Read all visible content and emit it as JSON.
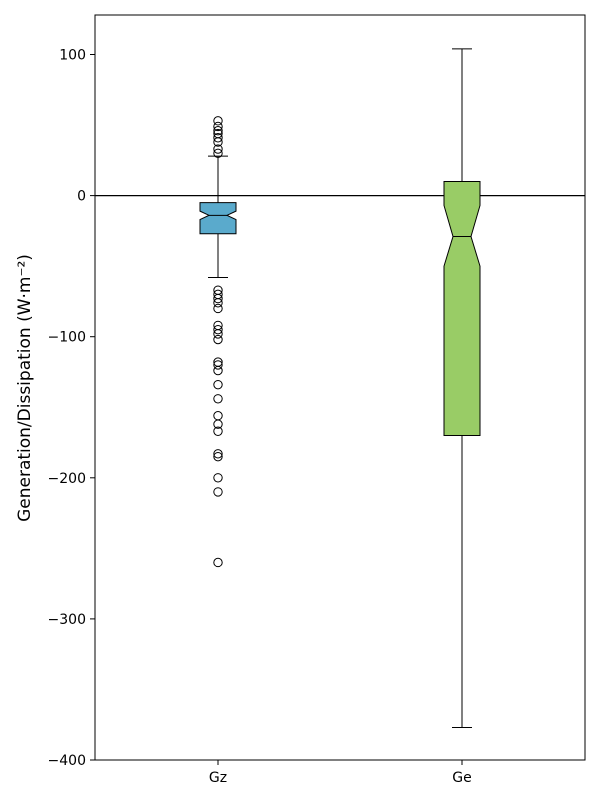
{
  "chart_data": {
    "type": "boxplot",
    "title": "",
    "xlabel": "",
    "ylabel": "Generation/Dissipation (W·m⁻²)",
    "ylim": [
      -400,
      128
    ],
    "yticks": [
      100,
      0,
      -100,
      -200,
      -300,
      -400
    ],
    "ytick_labels": [
      "100",
      "0",
      "−100",
      "−200",
      "−300",
      "−400"
    ],
    "reference_line": 0,
    "categories": [
      "Gz",
      "Ge"
    ],
    "boxes": [
      {
        "label": "Gz",
        "color": "#5aaacc",
        "notched": true,
        "whisker_low": -58,
        "q1": -27,
        "median": -14,
        "q3": -5,
        "whisker_high": 28,
        "notch_low": -17,
        "notch_high": -11,
        "outliers": [
          53,
          49,
          46,
          44,
          41,
          38,
          33,
          30,
          -67,
          -70,
          -73,
          -76,
          -80,
          -92,
          -95,
          -98,
          -102,
          -118,
          -120,
          -124,
          -134,
          -144,
          -156,
          -162,
          -167,
          -183,
          -185,
          -200,
          -210,
          -260
        ]
      },
      {
        "label": "Ge",
        "color": "#99cc66",
        "notched": true,
        "whisker_low": -377,
        "q1": -170,
        "median": -29,
        "q3": 10,
        "whisker_high": 104,
        "notch_low": -50,
        "notch_high": -7,
        "outliers": []
      }
    ]
  }
}
